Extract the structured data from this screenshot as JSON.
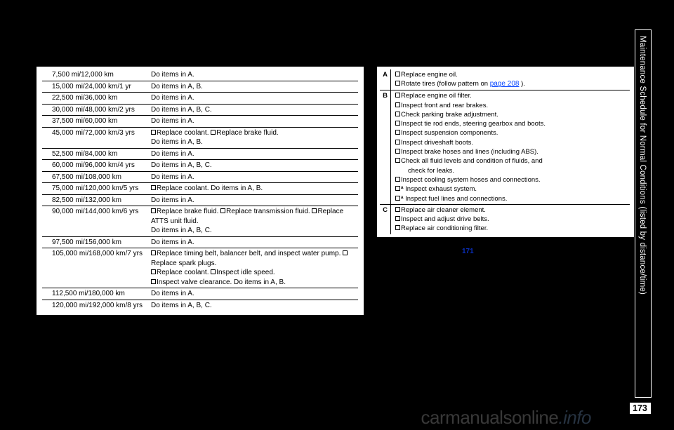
{
  "page_number": "173",
  "side_title": "Maintenance Schedule for Normal Conditions (listed by distance/time)",
  "watermark_a": "carmanualsonline",
  "watermark_b": ".info",
  "page_link": "page 208",
  "footnote_link": "171",
  "left_rows": [
    {
      "dist": "7,500 mi/12,000 km",
      "action": "Do items in A."
    },
    {
      "dist": "15,000 mi/24,000 km/1 yr",
      "action": "Do items in A, B."
    },
    {
      "dist": "22,500 mi/36,000 km",
      "action": "Do items in A."
    },
    {
      "dist": "30,000 mi/48,000 km/2 yrs",
      "action": "Do items in A, B, C."
    },
    {
      "dist": "37,500 mi/60,000 km",
      "action": "Do items in A."
    },
    {
      "dist": "45,000 mi/72,000 km/3 yrs",
      "action_html": "<span class=\"cb\"></span>Replace coolant. <span class=\"cb\"></span>Replace brake fluid.<br>Do items in A, B."
    },
    {
      "dist": "52,500 mi/84,000 km",
      "action": "Do items in A."
    },
    {
      "dist": "60,000 mi/96,000 km/4 yrs",
      "action": "Do items in A, B, C."
    },
    {
      "dist": "67,500 mi/108,000 km",
      "action": "Do items in A."
    },
    {
      "dist": "75,000 mi/120,000 km/5 yrs",
      "action_html": "<span class=\"cb\"></span>Replace coolant. Do items in A, B."
    },
    {
      "dist": "82,500 mi/132,000 km",
      "action": "Do items in A."
    },
    {
      "dist": "90,000 mi/144,000 km/6 yrs",
      "action_html": "<span class=\"cb\"></span>Replace brake fluid. <span class=\"cb\"></span>Replace transmission fluid. <span class=\"cb\"></span>Replace ATTS unit fluid.<br>Do items in A, B, C."
    },
    {
      "dist": "97,500 mi/156,000 km",
      "action": "Do items in A."
    },
    {
      "dist": "105,000 mi/168,000 km/7 yrs",
      "action_html": "<span class=\"cb\"></span>Replace timing belt, balancer belt, and inspect water pump. <span class=\"cb\"></span>Replace spark plugs.<br><span class=\"cb\"></span>Replace coolant. <span class=\"cb\"></span>Inspect idle speed.<br><span class=\"cb\"></span>Inspect valve clearance. Do items in A, B."
    },
    {
      "dist": "112,500 mi/180,000 km",
      "action": "Do items in A."
    },
    {
      "dist": "120,000 mi/192,000 km/8 yrs",
      "action": "Do items in A, B, C."
    }
  ],
  "right_groups": [
    {
      "letter": "A",
      "lines": [
        "<span class=\"cb\"></span>Replace engine oil.",
        "<span class=\"cb\"></span>Rotate tires (follow pattern on <a class=\"link-blue\" data-name=\"page-link\" data-interactable=\"true\">page 208</a> )."
      ]
    },
    {
      "letter": "B",
      "lines": [
        "<span class=\"cb\"></span>Replace engine oil filter.",
        "<span class=\"cb\"></span>Inspect front and rear brakes.",
        "<span class=\"cb\"></span>Check parking brake adjustment.",
        "<span class=\"cb\"></span>Inspect tie rod ends, steering gearbox and boots.",
        "<span class=\"cb\"></span>Inspect suspension components.",
        "<span class=\"cb\"></span>Inspect driveshaft boots.",
        "<span class=\"cb\"></span>Inspect brake hoses and lines (including ABS).",
        "<span class=\"cb\"></span>Check all fluid levels and condition of fluids, and<br><span class=\"indent\">check for leaks.</span>",
        "<span class=\"cb\"></span>Inspect cooling system hoses and connections.",
        "<span class=\"cb\"></span>ª Inspect exhaust system.",
        "<span class=\"cb\"></span>ª Inspect fuel lines and connections."
      ]
    },
    {
      "letter": "C",
      "lines": [
        "<span class=\"cb\"></span>Replace air cleaner element.",
        "<span class=\"cb\"></span>Inspect and adjust drive belts.",
        "<span class=\"cb\"></span>Replace air conditioning filter."
      ]
    }
  ]
}
